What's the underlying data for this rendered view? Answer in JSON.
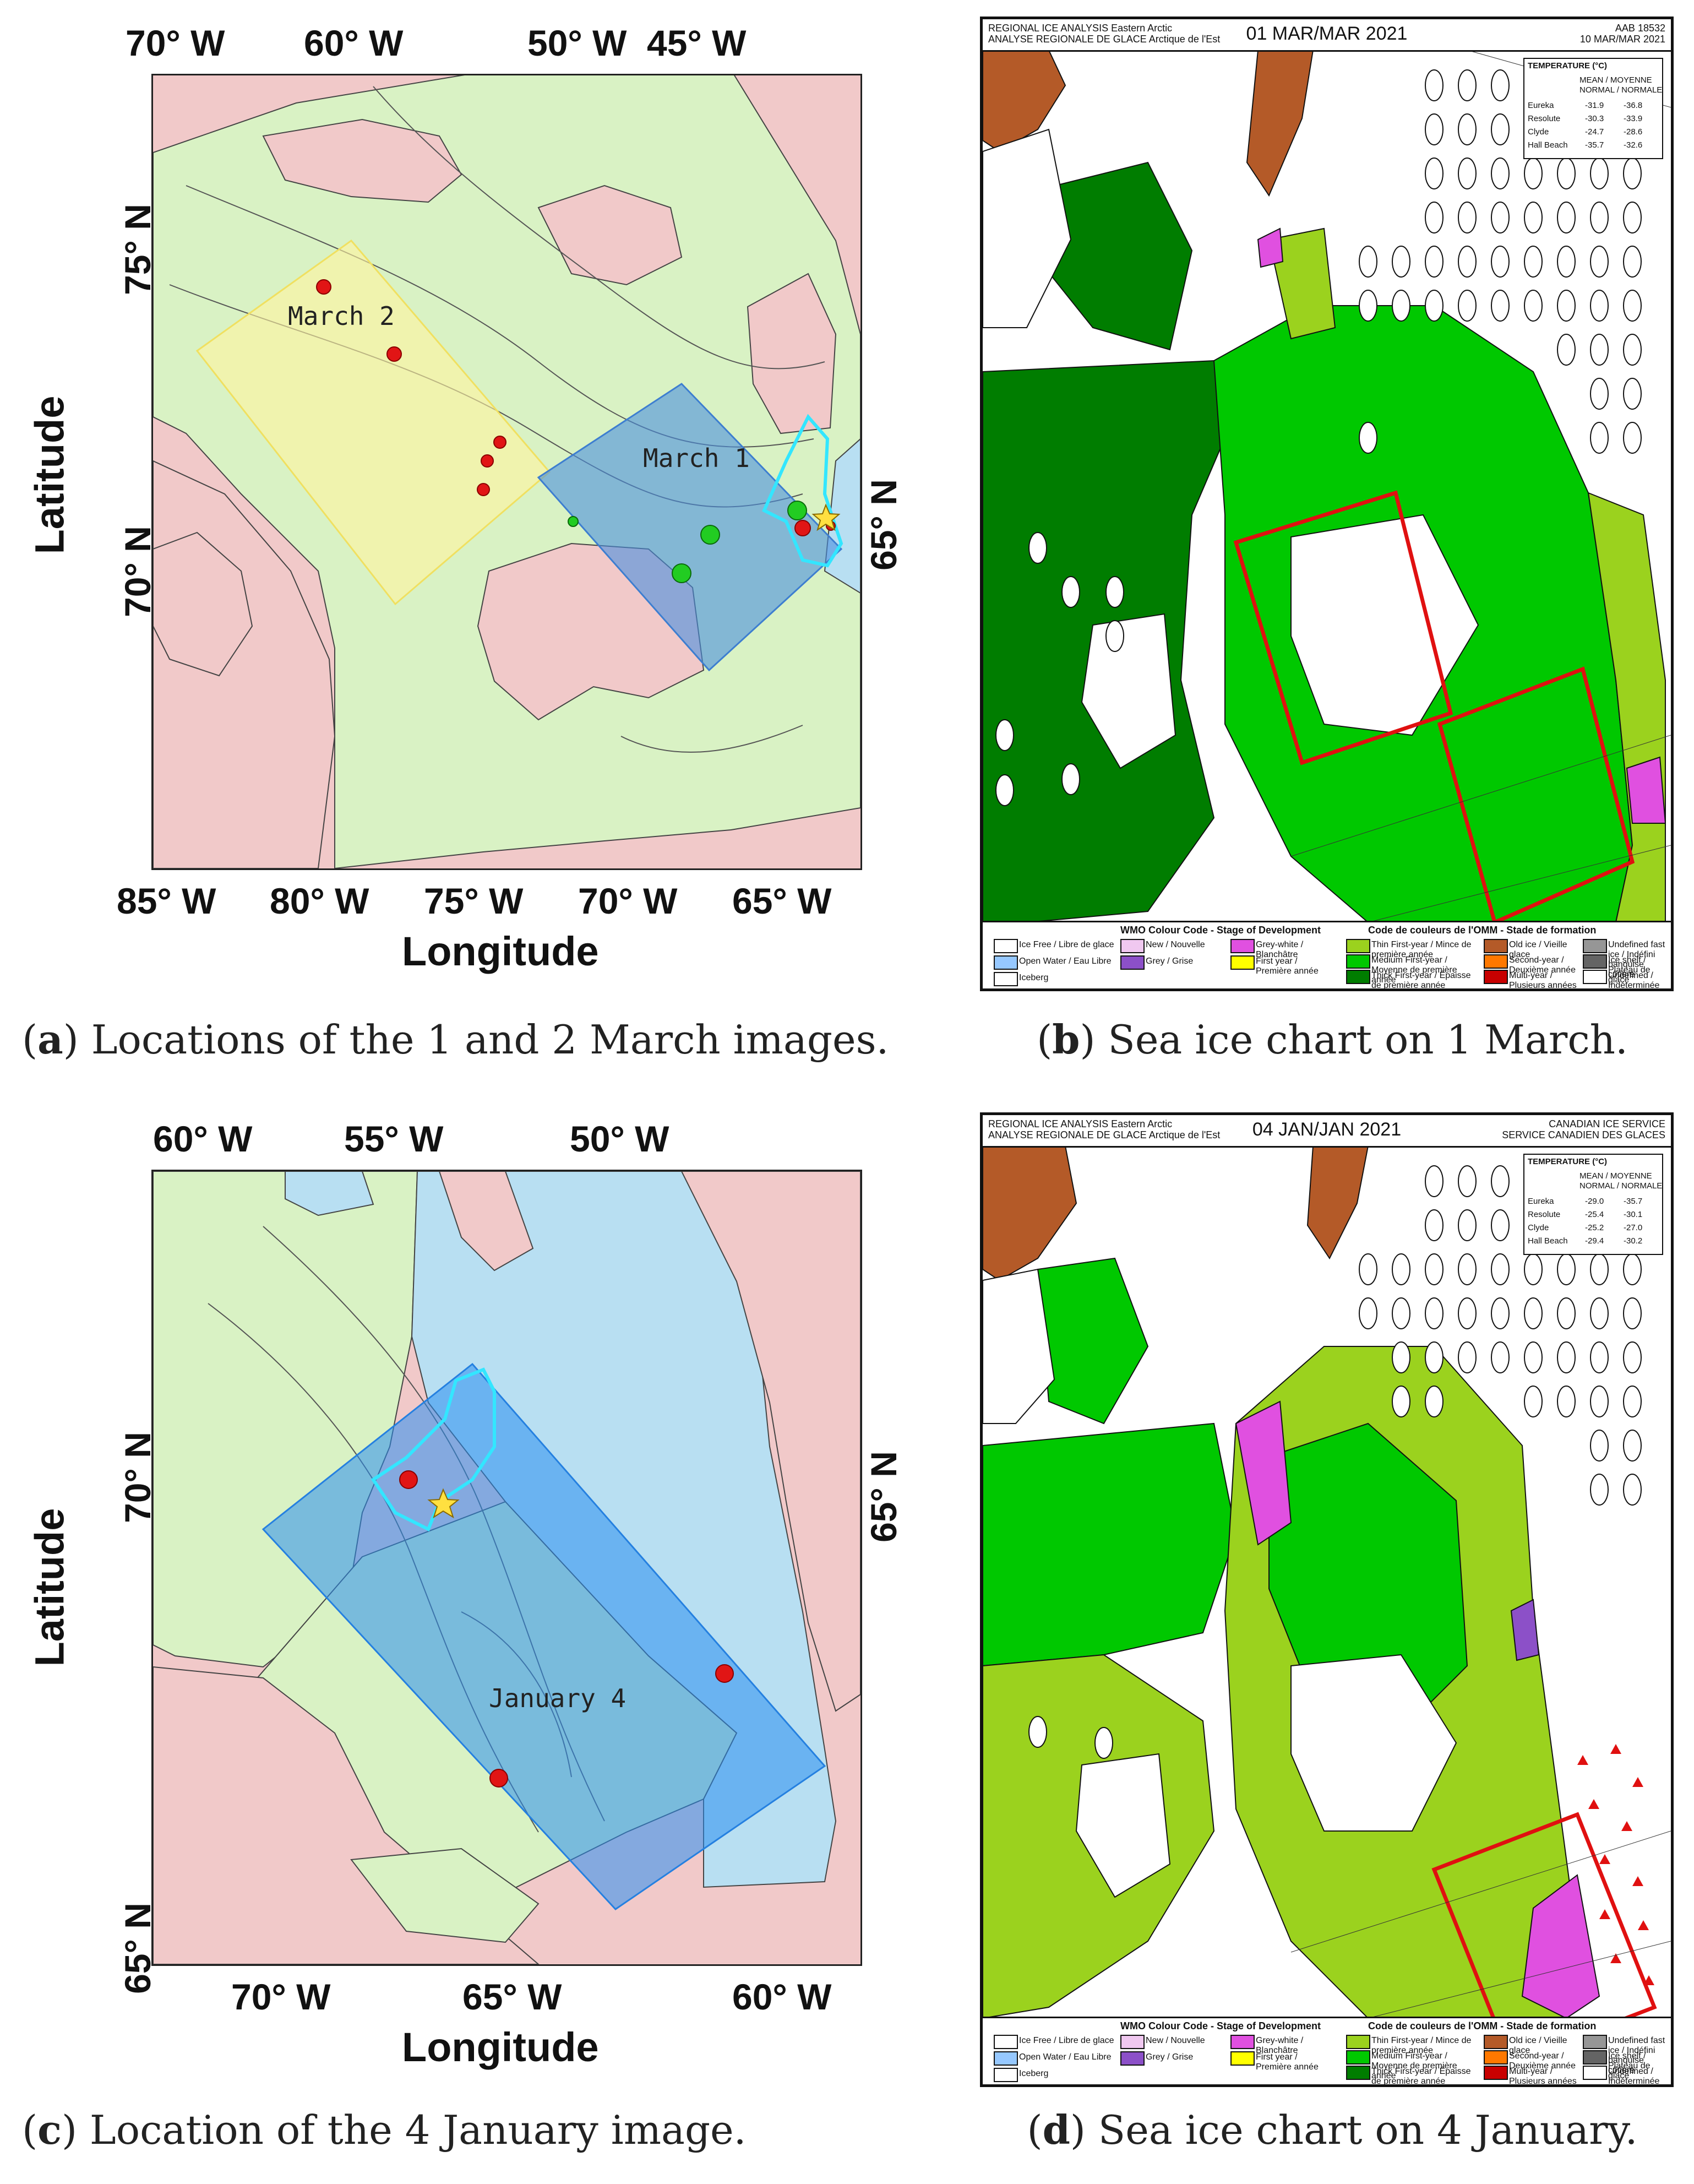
{
  "panels": {
    "a": {
      "top_ticks": [
        "70° W",
        "60° W",
        "50° W",
        "45° W"
      ],
      "bottom_ticks": [
        "85° W",
        "80° W",
        "75° W",
        "70° W",
        "65° W"
      ],
      "left_ticks": [
        "75° N",
        "70° N"
      ],
      "right_ticks": [
        "65° N"
      ],
      "xlabel": "Longitude",
      "ylabel": "Latitude",
      "map_labels": [
        "March 2",
        "March 1"
      ],
      "caption_letter": "a",
      "caption_text": " Locations of the 1 and 2 March images."
    },
    "b": {
      "chart_title": "01 MAR/MAR 2021",
      "header_left": [
        "REGIONAL ICE ANALYSIS  Eastern Arctic",
        "ANALYSE REGIONALE DE GLACE  Arctique de l'Est"
      ],
      "header_right": [
        "AAB 18532",
        "10 MAR/MAR 2021"
      ],
      "temperature": {
        "title": "TEMPERATURE (°C)",
        "cols": [
          "MEAN / MOYENNE",
          "NORMAL / NORMALE"
        ],
        "stations": [
          "Eureka",
          "Resolute",
          "Clyde",
          "Hall Beach"
        ],
        "mean": [
          "-31.9",
          "-30.3",
          "-24.7",
          "-35.7"
        ],
        "normal": [
          "-36.8",
          "-33.9",
          "-28.6",
          "-32.6"
        ]
      },
      "legend_title_left": "WMO Colour Code - Stage of Development",
      "legend_title_right": "Code de couleurs de l'OMM - Stade de formation",
      "caption_letter": "b",
      "caption_text": " Sea ice chart on 1 March."
    },
    "c": {
      "top_ticks": [
        "60° W",
        "55° W",
        "50° W"
      ],
      "bottom_ticks": [
        "70° W",
        "65° W",
        "60° W"
      ],
      "left_ticks": [
        "70° N",
        "65° N"
      ],
      "right_ticks": [
        "65° N"
      ],
      "xlabel": "Longitude",
      "ylabel": "Latitude",
      "map_labels": [
        "January 4"
      ],
      "caption_letter": "c",
      "caption_text": " Location of the 4 January image."
    },
    "d": {
      "chart_title": "04 JAN/JAN 2021",
      "header_left": [
        "REGIONAL ICE ANALYSIS  Eastern Arctic",
        "ANALYSE REGIONALE DE GLACE  Arctique de l'Est"
      ],
      "header_right": [
        "CANADIAN ICE SERVICE",
        "SERVICE CANADIEN DES GLACES"
      ],
      "temperature": {
        "title": "TEMPERATURE (°C)",
        "cols": [
          "MEAN / MOYENNE",
          "NORMAL / NORMALE"
        ],
        "stations": [
          "Eureka",
          "Resolute",
          "Clyde",
          "Hall Beach"
        ],
        "mean": [
          "-29.0",
          "-25.4",
          "-25.2",
          "-29.4"
        ],
        "normal": [
          "-35.7",
          "-30.1",
          "-27.0",
          "-30.2"
        ]
      },
      "legend_title_left": "WMO Colour Code - Stage of Development",
      "legend_title_right": "Code de couleurs de l'OMM - Stade de formation",
      "caption_letter": "d",
      "caption_text": " Sea ice chart on 4 January."
    }
  },
  "legend_items": [
    {
      "label": "Ice Free / Libre de glace",
      "color": "#ffffff"
    },
    {
      "label": "Open Water / Eau Libre",
      "color": "#96c8ff"
    },
    {
      "label": "Iceberg",
      "color": "#ffffff"
    },
    {
      "label": "New / Nouvelle",
      "color": "#f0c8f0"
    },
    {
      "label": "Grey / Grise",
      "color": "#8c50c8"
    },
    {
      "label": "Grey-white / Blanchâtre",
      "color": "#e050e0"
    },
    {
      "label": "First year / Première année",
      "color": "#ffff00"
    },
    {
      "label": "Thin First-year / Mince de première année",
      "color": "#9bd21e"
    },
    {
      "label": "Medium First-year / Moyenne de première année",
      "color": "#00c800"
    },
    {
      "label": "Thick First-year / Épaisse de première année",
      "color": "#007d00"
    },
    {
      "label": "Old ice / Vieille glace",
      "color": "#b45a28"
    },
    {
      "label": "Second-year / Deuxième année",
      "color": "#ff7800"
    },
    {
      "label": "Multi-year / Plusieurs années",
      "color": "#c80000"
    },
    {
      "label": "Undefined fast ice / Indéfini banquise côtière",
      "color": "#969696"
    },
    {
      "label": "Ice shelf / Plateau de glace",
      "color": "#646464"
    },
    {
      "label": "Undefined / Indéterminée",
      "color": "#ffffff"
    }
  ],
  "colors": {
    "land": "#f1c9c9",
    "first_year_ice_green": "#d9f2c4",
    "open_water_blue": "#b8dff2",
    "march2_box": "#fff3a0",
    "march1_box": "#4a8fe0",
    "jan4_box": "#2a8ef0",
    "point_red": "#e11515",
    "point_green": "#22cc22",
    "star_yellow": "#ffe040",
    "outline_cyan": "#33e6ff"
  }
}
